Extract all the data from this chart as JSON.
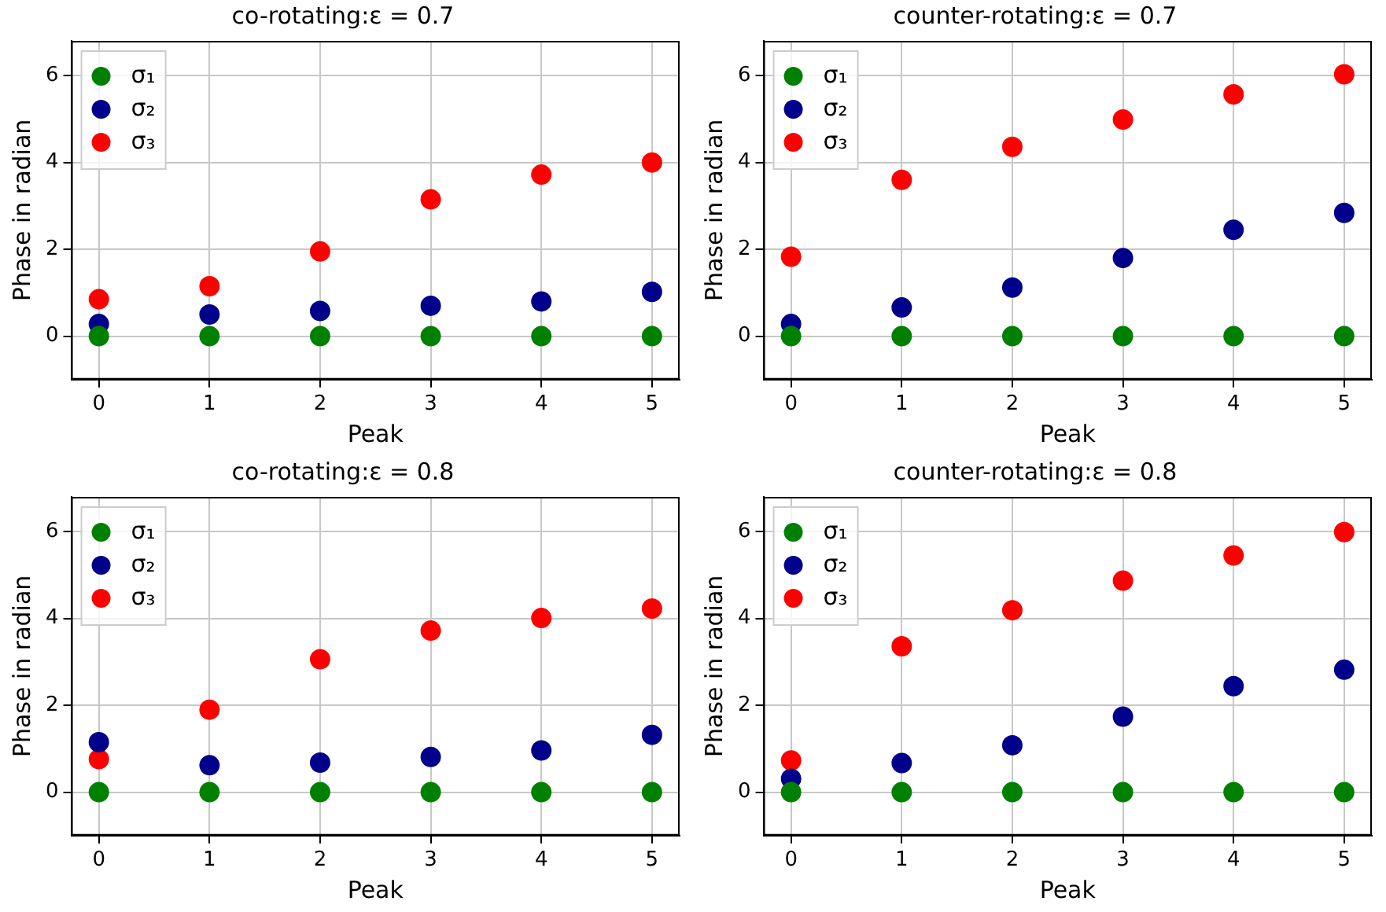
{
  "chart_data": [
    {
      "type": "scatter",
      "title": "co-rotating:ε = 0.7",
      "xlabel": "Peak",
      "ylabel": "Phase in radian",
      "x": [
        0,
        1,
        2,
        3,
        4,
        5
      ],
      "xlim": [
        -0.25,
        5.25
      ],
      "xticks": [
        0,
        1,
        2,
        3,
        4,
        5
      ],
      "ylim": [
        -1,
        6.8
      ],
      "yticks": [
        0,
        2,
        4,
        6
      ],
      "grid": true,
      "legend": "top left",
      "marker": "circle",
      "series": [
        {
          "name": "σ₁",
          "color": "#008000",
          "values": [
            0,
            0,
            0,
            0,
            0,
            0
          ]
        },
        {
          "name": "σ₂",
          "color": "#00008b",
          "values": [
            0.28,
            0.5,
            0.58,
            0.7,
            0.8,
            1.02
          ]
        },
        {
          "name": "σ₃",
          "color": "#ff0000",
          "values": [
            0.85,
            1.15,
            1.95,
            3.15,
            3.72,
            4.0
          ]
        }
      ]
    },
    {
      "type": "scatter",
      "title": "counter-rotating:ε = 0.7",
      "xlabel": "Peak",
      "ylabel": "Phase in radian",
      "x": [
        0,
        1,
        2,
        3,
        4,
        5
      ],
      "xlim": [
        -0.25,
        5.25
      ],
      "xticks": [
        0,
        1,
        2,
        3,
        4,
        5
      ],
      "ylim": [
        -1,
        6.8
      ],
      "yticks": [
        0,
        2,
        4,
        6
      ],
      "grid": true,
      "legend": "top left",
      "marker": "circle",
      "series": [
        {
          "name": "σ₁",
          "color": "#008000",
          "values": [
            0,
            0,
            0,
            0,
            0,
            0
          ]
        },
        {
          "name": "σ₂",
          "color": "#00008b",
          "values": [
            0.28,
            0.66,
            1.12,
            1.8,
            2.45,
            2.84
          ]
        },
        {
          "name": "σ₃",
          "color": "#ff0000",
          "values": [
            1.83,
            3.6,
            4.36,
            4.99,
            5.57,
            6.03
          ]
        }
      ]
    },
    {
      "type": "scatter",
      "title": "co-rotating:ε = 0.8",
      "xlabel": "Peak",
      "ylabel": "Phase in radian",
      "x": [
        0,
        1,
        2,
        3,
        4,
        5
      ],
      "xlim": [
        -0.25,
        5.25
      ],
      "xticks": [
        0,
        1,
        2,
        3,
        4,
        5
      ],
      "ylim": [
        -1,
        6.8
      ],
      "yticks": [
        0,
        2,
        4,
        6
      ],
      "grid": true,
      "legend": "top left",
      "marker": "circle",
      "series": [
        {
          "name": "σ₁",
          "color": "#008000",
          "values": [
            0,
            0,
            0,
            0,
            0,
            0
          ]
        },
        {
          "name": "σ₂",
          "color": "#00008b",
          "values": [
            1.15,
            0.62,
            0.68,
            0.81,
            0.96,
            1.32
          ]
        },
        {
          "name": "σ₃",
          "color": "#ff0000",
          "values": [
            0.76,
            1.9,
            3.06,
            3.72,
            4.01,
            4.23
          ]
        }
      ]
    },
    {
      "type": "scatter",
      "title": "counter-rotating:ε = 0.8",
      "xlabel": "Peak",
      "ylabel": "Phase in radian",
      "x": [
        0,
        1,
        2,
        3,
        4,
        5
      ],
      "xlim": [
        -0.25,
        5.25
      ],
      "xticks": [
        0,
        1,
        2,
        3,
        4,
        5
      ],
      "ylim": [
        -1,
        6.8
      ],
      "yticks": [
        0,
        2,
        4,
        6
      ],
      "grid": true,
      "legend": "top left",
      "marker": "circle",
      "series": [
        {
          "name": "σ₁",
          "color": "#008000",
          "values": [
            0,
            0,
            0,
            0,
            0,
            0
          ]
        },
        {
          "name": "σ₂",
          "color": "#00008b",
          "values": [
            0.31,
            0.67,
            1.08,
            1.74,
            2.44,
            2.82
          ]
        },
        {
          "name": "σ₃",
          "color": "#ff0000",
          "values": [
            0.73,
            3.36,
            4.19,
            4.87,
            5.45,
            5.99
          ]
        }
      ]
    }
  ]
}
